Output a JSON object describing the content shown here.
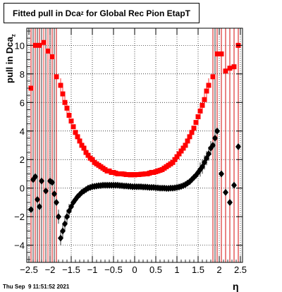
{
  "title": {
    "main": "Fitted pull in Dca",
    "sub": "z",
    "rest": " for Global Rec Pion EtapT"
  },
  "ylabel": {
    "main": "pull in Dca",
    "sub": "z"
  },
  "xlabel": "η",
  "timestamp": "Thu Sep  9 11:51:52 2021",
  "chart_data": {
    "type": "scatter",
    "xlim": [
      -2.55,
      2.55
    ],
    "ylim": [
      -5.2,
      11.2
    ],
    "x_ticks": [
      -2.5,
      -2,
      -1.5,
      -1,
      -0.5,
      0,
      0.5,
      1,
      1.5,
      2,
      2.5
    ],
    "x_tick_labels": [
      "−2.5",
      "−2",
      "−1.5",
      "−1",
      "−0.5",
      "0",
      "0.5",
      "1",
      "1.5",
      "2",
      "2.5"
    ],
    "y_ticks": [
      -4,
      -2,
      0,
      2,
      4,
      6,
      8,
      10
    ],
    "y_tick_labels": [
      "−4",
      "−2",
      "0",
      "2",
      "4",
      "6",
      "8",
      "10"
    ],
    "grid": true,
    "series": [
      {
        "marker": "square",
        "color": "#ff0000",
        "x": [
          -2.45,
          -2.35,
          -2.25,
          -2.15,
          -2.05,
          -1.95,
          -1.85,
          -1.75,
          -1.7,
          -1.65,
          -1.6,
          -1.55,
          -1.5,
          -1.45,
          -1.4,
          -1.35,
          -1.3,
          -1.25,
          -1.2,
          -1.15,
          -1.1,
          -1.05,
          -1.0,
          -0.95,
          -0.9,
          -0.85,
          -0.8,
          -0.75,
          -0.7,
          -0.65,
          -0.6,
          -0.55,
          -0.5,
          -0.45,
          -0.4,
          -0.35,
          -0.3,
          -0.25,
          -0.2,
          -0.15,
          -0.1,
          -0.05,
          0.0,
          0.05,
          0.1,
          0.15,
          0.2,
          0.25,
          0.3,
          0.35,
          0.4,
          0.45,
          0.5,
          0.55,
          0.6,
          0.65,
          0.7,
          0.75,
          0.8,
          0.85,
          0.9,
          0.95,
          1.0,
          1.05,
          1.1,
          1.15,
          1.2,
          1.25,
          1.3,
          1.35,
          1.4,
          1.45,
          1.5,
          1.55,
          1.6,
          1.65,
          1.7,
          1.75,
          1.85,
          1.95,
          2.05,
          2.15,
          2.25,
          2.35,
          2.45
        ],
        "y": [
          7.0,
          10.0,
          10.0,
          10.2,
          9.6,
          9.2,
          7.8,
          7.2,
          6.6,
          6.0,
          5.6,
          5.1,
          4.7,
          4.3,
          3.9,
          3.6,
          3.3,
          3.0,
          2.8,
          2.5,
          2.3,
          2.1,
          2.0,
          1.8,
          1.7,
          1.6,
          1.5,
          1.4,
          1.3,
          1.2,
          1.2,
          1.1,
          1.1,
          1.05,
          1.0,
          1.0,
          1.0,
          0.98,
          0.95,
          0.95,
          0.93,
          0.95,
          0.93,
          0.95,
          0.95,
          0.97,
          0.98,
          1.0,
          1.0,
          1.05,
          1.1,
          1.1,
          1.15,
          1.2,
          1.25,
          1.3,
          1.4,
          1.5,
          1.6,
          1.7,
          1.8,
          2.0,
          2.2,
          2.4,
          2.6,
          2.8,
          3.0,
          3.3,
          3.6,
          3.9,
          4.2,
          4.6,
          5.0,
          5.4,
          5.8,
          6.2,
          6.8,
          7.2,
          7.8,
          9.4,
          9.4,
          8.2,
          8.4,
          8.5,
          10.0
        ]
      },
      {
        "marker": "diamond",
        "color": "#000000",
        "x": [
          -2.45,
          -2.4,
          -2.35,
          -2.3,
          -2.25,
          -2.2,
          -2.1,
          -2.0,
          -1.95,
          -1.9,
          -1.85,
          -1.8,
          -1.75,
          -1.7,
          -1.65,
          -1.6,
          -1.55,
          -1.5,
          -1.45,
          -1.4,
          -1.35,
          -1.3,
          -1.25,
          -1.2,
          -1.15,
          -1.1,
          -1.05,
          -1.0,
          -0.95,
          -0.9,
          -0.85,
          -0.8,
          -0.75,
          -0.7,
          -0.65,
          -0.6,
          -0.55,
          -0.5,
          -0.45,
          -0.4,
          -0.35,
          -0.3,
          -0.25,
          -0.2,
          -0.15,
          -0.1,
          -0.05,
          0.0,
          0.05,
          0.1,
          0.15,
          0.2,
          0.25,
          0.3,
          0.35,
          0.4,
          0.45,
          0.5,
          0.55,
          0.6,
          0.65,
          0.7,
          0.75,
          0.8,
          0.85,
          0.9,
          0.95,
          1.0,
          1.05,
          1.1,
          1.15,
          1.2,
          1.25,
          1.3,
          1.35,
          1.4,
          1.45,
          1.5,
          1.55,
          1.6,
          1.65,
          1.7,
          1.75,
          1.8,
          1.85,
          1.9,
          1.95,
          2.05,
          2.15,
          2.25,
          2.35,
          2.45
        ],
        "y": [
          -1.5,
          0.6,
          0.8,
          -0.8,
          -1.3,
          0.5,
          -0.2,
          0.5,
          0.4,
          -0.4,
          -1.0,
          -2.0,
          -3.5,
          -3.0,
          -2.5,
          -2.0,
          -1.6,
          -1.3,
          -1.0,
          -0.8,
          -0.6,
          -0.45,
          -0.3,
          -0.2,
          -0.1,
          0.0,
          0.05,
          0.1,
          0.12,
          0.15,
          0.17,
          0.18,
          0.2,
          0.2,
          0.2,
          0.2,
          0.2,
          0.2,
          0.2,
          0.2,
          0.18,
          0.17,
          0.15,
          0.15,
          0.13,
          0.12,
          0.1,
          0.1,
          0.1,
          0.1,
          0.1,
          0.08,
          0.08,
          0.07,
          0.05,
          0.05,
          0.05,
          0.03,
          0.02,
          0.0,
          0.0,
          0.0,
          -0.02,
          -0.02,
          0.0,
          0.0,
          0.02,
          0.05,
          0.08,
          0.12,
          0.18,
          0.25,
          0.35,
          0.45,
          0.6,
          0.75,
          0.9,
          1.1,
          1.3,
          1.5,
          1.8,
          2.1,
          2.4,
          2.8,
          3.0,
          3.5,
          4.0,
          1.0,
          -0.3,
          -1.0,
          0.2,
          2.9
        ]
      }
    ]
  }
}
